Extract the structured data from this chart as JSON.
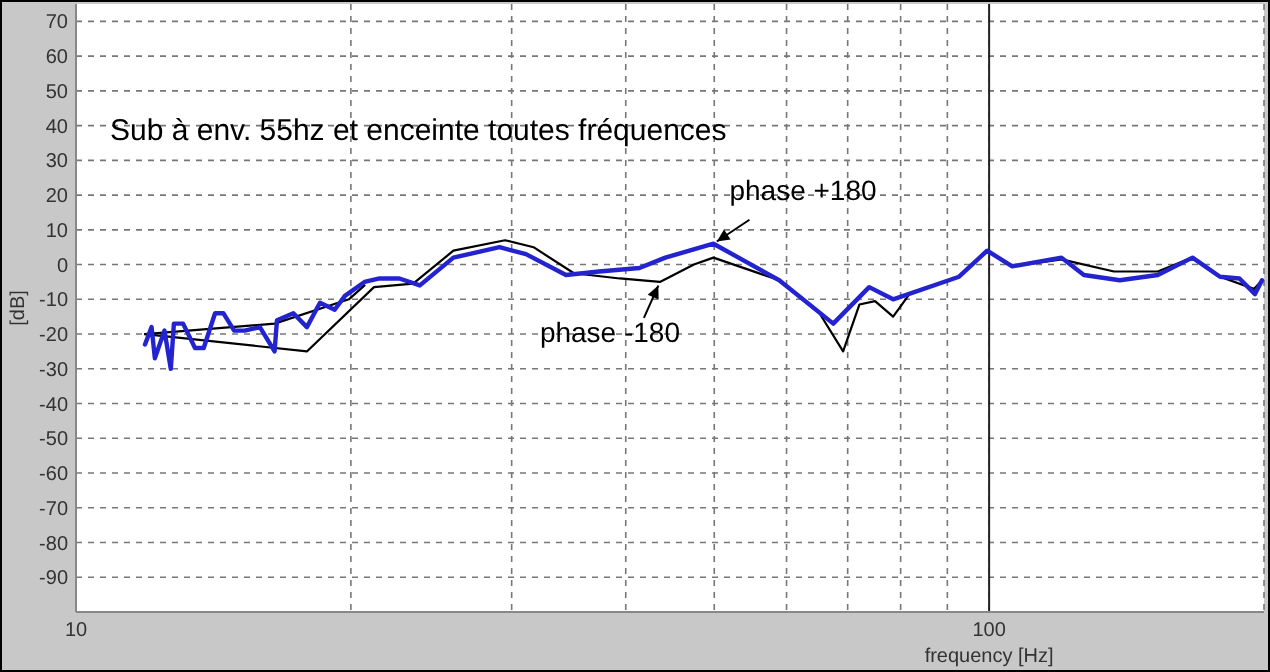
{
  "chart_data": {
    "type": "line",
    "xlabel": "frequency [Hz]",
    "ylabel": "[dB]",
    "log": "x",
    "grid": true,
    "marker": "none",
    "line_style": "solid",
    "xlim": [
      10,
      200
    ],
    "xticks": [
      10,
      {
        "value": 20,
        "label": null
      },
      {
        "value": 30,
        "label": null
      },
      {
        "value": 40,
        "label": null
      },
      {
        "value": 50,
        "label": null
      },
      {
        "value": 60,
        "label": null
      },
      {
        "value": 70,
        "label": null
      },
      {
        "value": 80,
        "label": null
      },
      {
        "value": 90,
        "label": null
      },
      100,
      {
        "value": 200,
        "label": null
      }
    ],
    "ylim": [
      -100,
      75
    ],
    "yticks": [
      -90,
      -80,
      -70,
      -60,
      -50,
      -40,
      -30,
      -20,
      -10,
      0,
      10,
      20,
      30,
      40,
      50,
      60,
      70
    ],
    "annotations": [
      "Sub à env. 55hz et enceinte toutes fréquences",
      {
        "text": "phase -180",
        "x": 43.6,
        "y": -5
      },
      {
        "text": "phase +180",
        "x": 49.9,
        "y": 6
      }
    ],
    "ref_lines": [
      {
        "axis": "x",
        "value": 100,
        "color": "#222222",
        "line_style": "solid"
      }
    ],
    "series": [
      {
        "color": "#000000",
        "x": [
          11.9,
          16.5,
          19.9,
          20.7
        ],
        "values": [
          -20,
          -17,
          -10,
          -6
        ]
      },
      {
        "color": "#000000",
        "x": [
          11.9,
          17.9,
          21.2,
          23.4,
          25.9,
          29.5,
          31.7,
          35.1,
          39.4,
          43.6,
          47.5,
          49.9,
          58.9,
          65.2,
          69.2,
          72.1,
          75.0,
          78.5,
          81.8,
          92.7,
          99.5,
          106,
          120,
          137,
          153,
          167,
          179,
          195,
          199
        ],
        "values": [
          -20,
          -25,
          -6.5,
          -5.5,
          4,
          7,
          5,
          -2.5,
          -4,
          -5,
          0,
          2,
          -4.5,
          -14,
          -25,
          -11.5,
          -10.5,
          -15,
          -8.5,
          -3.5,
          4,
          -0.5,
          1.5,
          -2,
          -2,
          2,
          -3.5,
          -7,
          -4.5
        ]
      },
      {
        "color": "#2323d0",
        "x": [
          11.9,
          12.1,
          12.2,
          12.5,
          12.7,
          12.8,
          13.1,
          13.5,
          13.8,
          14.2,
          14.5,
          14.9,
          15.3,
          15.9,
          16.5,
          16.6,
          17.3,
          17.9,
          18.5,
          19.2,
          19.7,
          20.7,
          21.5,
          22.6,
          23.8,
          25.9,
          29.1,
          31.1,
          34.4,
          37.4,
          41.4,
          44.2,
          49.9,
          58.9,
          67.5,
          73.9,
          78.5,
          92.7,
          99.5,
          106,
          120,
          127,
          139,
          153,
          167,
          179,
          188,
          195.5,
          199
        ],
        "values": [
          -23,
          -18,
          -27,
          -19,
          -30,
          -17,
          -17,
          -24,
          -24,
          -14,
          -14,
          -19,
          -19,
          -18,
          -25,
          -16,
          -14,
          -18,
          -11,
          -13,
          -9,
          -5,
          -4,
          -4,
          -6,
          2,
          5,
          3,
          -3,
          -2,
          -1,
          2,
          6,
          -4.5,
          -17,
          -6.5,
          -10,
          -3.5,
          4,
          -0.5,
          2,
          -3,
          -4.5,
          -3,
          2,
          -3.5,
          -4,
          -8.5,
          -4.5
        ]
      }
    ]
  }
}
